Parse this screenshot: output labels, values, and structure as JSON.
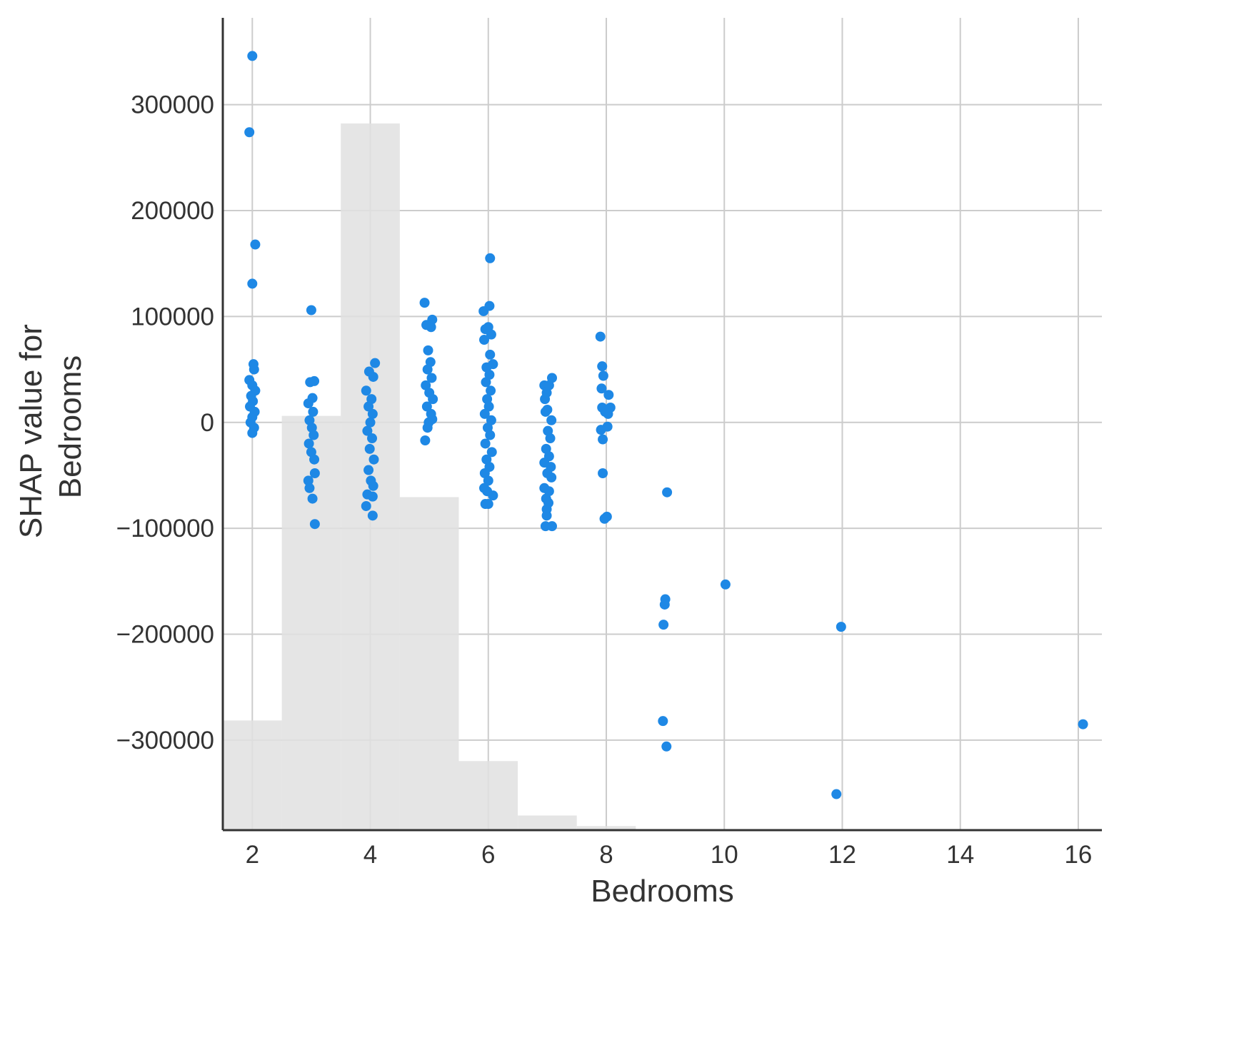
{
  "chart_data": {
    "type": "scatter",
    "title": "",
    "xlabel": "Bedrooms",
    "ylabel_lines": [
      "SHAP value for",
      "Bedrooms"
    ],
    "xlim": [
      1.5,
      16.4
    ],
    "ylim": [
      -385000,
      382000
    ],
    "xticks": [
      2,
      4,
      6,
      8,
      10,
      12,
      14,
      16
    ],
    "yticks": [
      -300000,
      -200000,
      -100000,
      0,
      100000,
      200000,
      300000
    ],
    "xtick_labels": [
      "2",
      "4",
      "6",
      "8",
      "10",
      "12",
      "14",
      "16"
    ],
    "ytick_labels": [
      "−300000",
      "−200000",
      "−100000",
      "0",
      "100000",
      "200000",
      "300000"
    ],
    "grid": true,
    "colors": {
      "point": "#1e88e5",
      "histogram": "#e0e0e0",
      "grid": "#cccccc",
      "axis": "#333333"
    },
    "histogram": {
      "bin_centers": [
        2,
        3,
        4,
        5,
        6,
        7,
        8
      ],
      "bin_width": 1,
      "relative_heights": [
        0.135,
        0.51,
        0.87,
        0.41,
        0.085,
        0.018,
        0.005
      ]
    },
    "series": [
      {
        "values": [
          {
            "x": 2.0,
            "y": 346000
          },
          {
            "x": 1.95,
            "y": 274000
          },
          {
            "x": 2.05,
            "y": 168000
          },
          {
            "x": 2.0,
            "y": 131000
          },
          {
            "x": 2.02,
            "y": 55000
          },
          {
            "x": 2.03,
            "y": 50000
          },
          {
            "x": 1.95,
            "y": 40000
          },
          {
            "x": 2.0,
            "y": 35000
          },
          {
            "x": 2.05,
            "y": 30000
          },
          {
            "x": 1.98,
            "y": 25000
          },
          {
            "x": 2.01,
            "y": 20000
          },
          {
            "x": 1.96,
            "y": 15000
          },
          {
            "x": 2.04,
            "y": 10000
          },
          {
            "x": 2.0,
            "y": 5000
          },
          {
            "x": 1.97,
            "y": 0
          },
          {
            "x": 2.03,
            "y": -5000
          },
          {
            "x": 2.0,
            "y": -10000
          },
          {
            "x": 3.0,
            "y": 106000
          },
          {
            "x": 2.98,
            "y": 38000
          },
          {
            "x": 3.05,
            "y": 39000
          },
          {
            "x": 3.02,
            "y": 23000
          },
          {
            "x": 2.95,
            "y": 18000
          },
          {
            "x": 3.03,
            "y": 10000
          },
          {
            "x": 2.97,
            "y": 2000
          },
          {
            "x": 3.01,
            "y": -5000
          },
          {
            "x": 3.04,
            "y": -12000
          },
          {
            "x": 2.96,
            "y": -20000
          },
          {
            "x": 3.0,
            "y": -28000
          },
          {
            "x": 3.05,
            "y": -35000
          },
          {
            "x": 3.06,
            "y": -48000
          },
          {
            "x": 2.95,
            "y": -55000
          },
          {
            "x": 2.97,
            "y": -62000
          },
          {
            "x": 3.02,
            "y": -72000
          },
          {
            "x": 3.06,
            "y": -96000
          },
          {
            "x": 4.08,
            "y": 56000
          },
          {
            "x": 3.98,
            "y": 48000
          },
          {
            "x": 4.05,
            "y": 43000
          },
          {
            "x": 3.93,
            "y": 30000
          },
          {
            "x": 4.02,
            "y": 22000
          },
          {
            "x": 3.97,
            "y": 15000
          },
          {
            "x": 4.04,
            "y": 8000
          },
          {
            "x": 4.0,
            "y": 0
          },
          {
            "x": 3.95,
            "y": -8000
          },
          {
            "x": 4.03,
            "y": -15000
          },
          {
            "x": 3.99,
            "y": -25000
          },
          {
            "x": 4.06,
            "y": -35000
          },
          {
            "x": 3.97,
            "y": -45000
          },
          {
            "x": 4.01,
            "y": -55000
          },
          {
            "x": 4.05,
            "y": -60000
          },
          {
            "x": 3.95,
            "y": -68000
          },
          {
            "x": 4.04,
            "y": -70000
          },
          {
            "x": 3.93,
            "y": -79000
          },
          {
            "x": 4.04,
            "y": -88000
          },
          {
            "x": 4.92,
            "y": 113000
          },
          {
            "x": 5.05,
            "y": 97000
          },
          {
            "x": 4.95,
            "y": 92000
          },
          {
            "x": 5.03,
            "y": 90000
          },
          {
            "x": 4.98,
            "y": 68000
          },
          {
            "x": 5.02,
            "y": 57000
          },
          {
            "x": 4.97,
            "y": 50000
          },
          {
            "x": 5.04,
            "y": 42000
          },
          {
            "x": 4.94,
            "y": 35000
          },
          {
            "x": 5.0,
            "y": 28000
          },
          {
            "x": 5.06,
            "y": 22000
          },
          {
            "x": 4.96,
            "y": 15000
          },
          {
            "x": 5.03,
            "y": 8000
          },
          {
            "x": 4.99,
            "y": 0
          },
          {
            "x": 5.05,
            "y": 3000
          },
          {
            "x": 4.97,
            "y": -5000
          },
          {
            "x": 4.93,
            "y": -17000
          },
          {
            "x": 6.03,
            "y": 155000
          },
          {
            "x": 6.02,
            "y": 110000
          },
          {
            "x": 5.92,
            "y": 105000
          },
          {
            "x": 5.95,
            "y": 88000
          },
          {
            "x": 6.0,
            "y": 90000
          },
          {
            "x": 6.05,
            "y": 83000
          },
          {
            "x": 5.93,
            "y": 78000
          },
          {
            "x": 6.03,
            "y": 64000
          },
          {
            "x": 6.08,
            "y": 55000
          },
          {
            "x": 5.97,
            "y": 52000
          },
          {
            "x": 6.02,
            "y": 45000
          },
          {
            "x": 5.96,
            "y": 38000
          },
          {
            "x": 6.04,
            "y": 30000
          },
          {
            "x": 5.98,
            "y": 22000
          },
          {
            "x": 6.01,
            "y": 15000
          },
          {
            "x": 5.94,
            "y": 8000
          },
          {
            "x": 6.05,
            "y": 2000
          },
          {
            "x": 5.99,
            "y": -5000
          },
          {
            "x": 6.03,
            "y": -12000
          },
          {
            "x": 5.95,
            "y": -20000
          },
          {
            "x": 6.06,
            "y": -28000
          },
          {
            "x": 5.97,
            "y": -35000
          },
          {
            "x": 6.02,
            "y": -42000
          },
          {
            "x": 5.94,
            "y": -48000
          },
          {
            "x": 6.0,
            "y": -55000
          },
          {
            "x": 5.93,
            "y": -62000
          },
          {
            "x": 5.98,
            "y": -65000
          },
          {
            "x": 6.08,
            "y": -69000
          },
          {
            "x": 5.95,
            "y": -77000
          },
          {
            "x": 6.0,
            "y": -77000
          },
          {
            "x": 7.08,
            "y": 42000
          },
          {
            "x": 6.95,
            "y": 35000
          },
          {
            "x": 7.03,
            "y": 35000
          },
          {
            "x": 6.99,
            "y": 28000
          },
          {
            "x": 6.96,
            "y": 22000
          },
          {
            "x": 7.0,
            "y": 12000
          },
          {
            "x": 6.97,
            "y": 10000
          },
          {
            "x": 7.07,
            "y": 2000
          },
          {
            "x": 7.01,
            "y": -8000
          },
          {
            "x": 7.05,
            "y": -15000
          },
          {
            "x": 6.98,
            "y": -25000
          },
          {
            "x": 7.03,
            "y": -32000
          },
          {
            "x": 6.95,
            "y": -38000
          },
          {
            "x": 7.06,
            "y": -42000
          },
          {
            "x": 7.0,
            "y": -48000
          },
          {
            "x": 7.07,
            "y": -52000
          },
          {
            "x": 6.95,
            "y": -62000
          },
          {
            "x": 7.03,
            "y": -65000
          },
          {
            "x": 6.98,
            "y": -72000
          },
          {
            "x": 7.02,
            "y": -76000
          },
          {
            "x": 6.99,
            "y": -82000
          },
          {
            "x": 6.99,
            "y": -88000
          },
          {
            "x": 6.97,
            "y": -98000
          },
          {
            "x": 7.08,
            "y": -98000
          },
          {
            "x": 7.9,
            "y": 81000
          },
          {
            "x": 7.93,
            "y": 53000
          },
          {
            "x": 7.95,
            "y": 44000
          },
          {
            "x": 7.92,
            "y": 32000
          },
          {
            "x": 8.04,
            "y": 26000
          },
          {
            "x": 7.93,
            "y": 14000
          },
          {
            "x": 8.07,
            "y": 14000
          },
          {
            "x": 7.98,
            "y": 10000
          },
          {
            "x": 8.03,
            "y": 8000
          },
          {
            "x": 8.02,
            "y": -4000
          },
          {
            "x": 7.91,
            "y": -7000
          },
          {
            "x": 7.94,
            "y": -16000
          },
          {
            "x": 7.94,
            "y": -48000
          },
          {
            "x": 8.01,
            "y": -89000
          },
          {
            "x": 7.97,
            "y": -91000
          },
          {
            "x": 9.03,
            "y": -66000
          },
          {
            "x": 9.0,
            "y": -167000
          },
          {
            "x": 8.99,
            "y": -172000
          },
          {
            "x": 8.97,
            "y": -191000
          },
          {
            "x": 8.96,
            "y": -282000
          },
          {
            "x": 9.02,
            "y": -306000
          },
          {
            "x": 10.02,
            "y": -153000
          },
          {
            "x": 11.98,
            "y": -193000
          },
          {
            "x": 11.9,
            "y": -351000
          },
          {
            "x": 16.08,
            "y": -285000
          }
        ]
      }
    ]
  }
}
